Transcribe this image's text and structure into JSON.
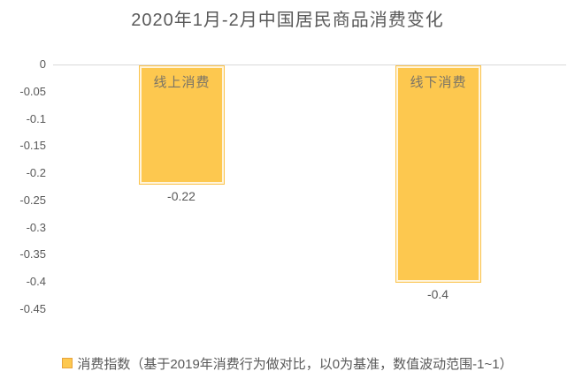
{
  "chart_data": {
    "type": "bar",
    "title": "2020年1月-2月中国居民商品消费变化",
    "categories": [
      "线上消费",
      "线下消费"
    ],
    "values": [
      -0.22,
      -0.4
    ],
    "value_labels": [
      "-0.22",
      "-0.4"
    ],
    "series_name": "消费指数",
    "legend_label": "消费指数（基于2019年消费行为做对比，以0为基准，数值波动范围-1~1）",
    "legend_position": "bottom",
    "ylim": [
      -0.45,
      0
    ],
    "ytick_step": 0.05,
    "yticks": [
      "0",
      "-0.05",
      "-0.1",
      "-0.15",
      "-0.2",
      "-0.25",
      "-0.3",
      "-0.35",
      "-0.4",
      "-0.45"
    ],
    "grid": false,
    "xlabel": "",
    "ylabel": "",
    "colors": {
      "bar_fill": "#fdc84f",
      "bar_rim": "#fbc34b",
      "bar_inner_stripe": "#ffffff",
      "legend_swatch_border": "#e7a33c",
      "axis_line": "#d9d9d9",
      "text": "#595959",
      "bar_label_text": "#7a7467",
      "background": "#ffffff"
    }
  }
}
